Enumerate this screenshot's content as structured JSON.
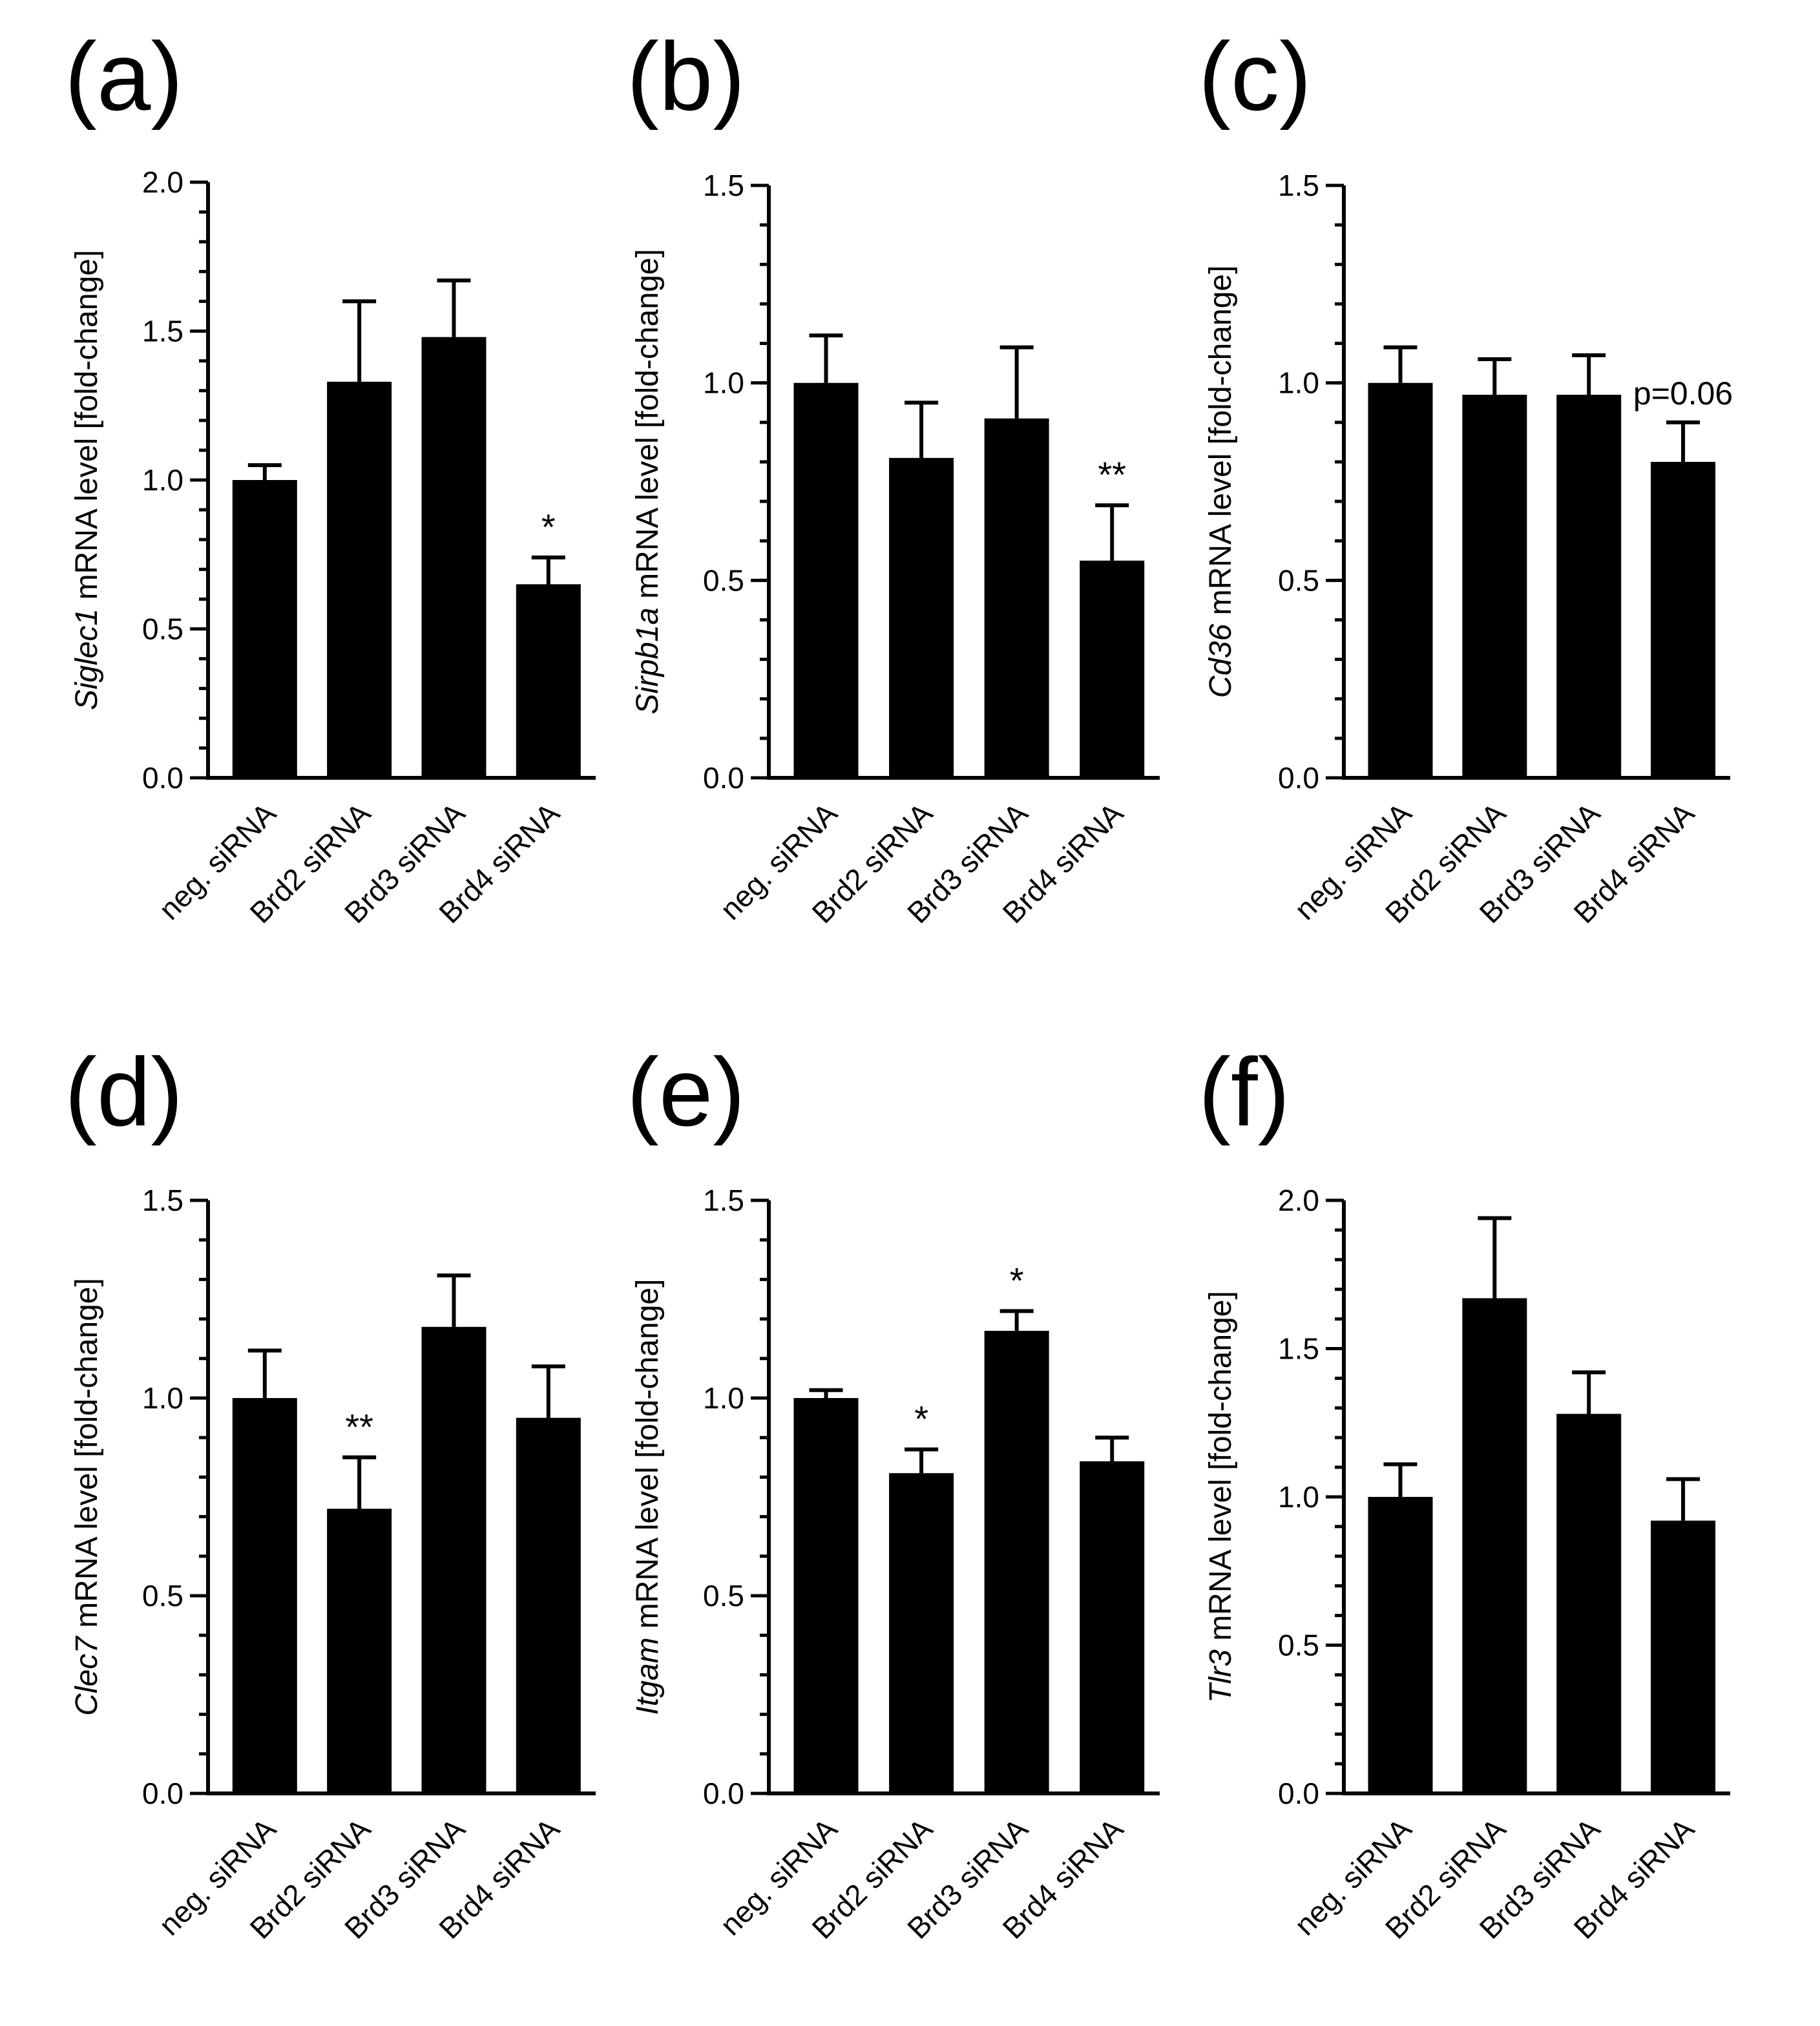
{
  "chart_data": [
    {
      "panel": "(a)",
      "type": "bar",
      "ylabel_gene": "Siglec1",
      "ylabel_rest": " mRNA level [fold-change]",
      "categories": [
        "neg. siRNA",
        "Brd2 siRNA",
        "Brd3 siRNA",
        "Brd4 siRNA"
      ],
      "values": [
        1.0,
        1.33,
        1.48,
        0.65
      ],
      "errors": [
        0.05,
        0.27,
        0.19,
        0.09
      ],
      "annotations": [
        "",
        "",
        "",
        "*"
      ],
      "ylim": [
        0,
        2.0
      ],
      "ticks": [
        0.0,
        0.5,
        1.0,
        1.5,
        2.0
      ],
      "minor_step": 0.1
    },
    {
      "panel": "(b)",
      "type": "bar",
      "ylabel_gene": "Sirpb1a",
      "ylabel_rest": " mRNA level [fold-change]",
      "categories": [
        "neg. siRNA",
        "Brd2 siRNA",
        "Brd3 siRNA",
        "Brd4 siRNA"
      ],
      "values": [
        1.0,
        0.81,
        0.91,
        0.55
      ],
      "errors": [
        0.12,
        0.14,
        0.18,
        0.14
      ],
      "annotations": [
        "",
        "",
        "",
        "**"
      ],
      "ylim": [
        0,
        1.5
      ],
      "ticks": [
        0.0,
        0.5,
        1.0,
        1.5
      ],
      "minor_step": 0.1
    },
    {
      "panel": "(c)",
      "type": "bar",
      "ylabel_gene": "Cd36",
      "ylabel_rest": " mRNA level [fold-change]",
      "categories": [
        "neg. siRNA",
        "Brd2 siRNA",
        "Brd3 siRNA",
        "Brd4 siRNA"
      ],
      "values": [
        1.0,
        0.97,
        0.97,
        0.8
      ],
      "errors": [
        0.09,
        0.09,
        0.1,
        0.1
      ],
      "annotations": [
        "",
        "",
        "",
        "p=0.06"
      ],
      "ylim": [
        0,
        1.5
      ],
      "ticks": [
        0.0,
        0.5,
        1.0,
        1.5
      ],
      "minor_step": 0.1
    },
    {
      "panel": "(d)",
      "type": "bar",
      "ylabel_gene": "Clec7",
      "ylabel_rest": " mRNA level [fold-change]",
      "categories": [
        "neg. siRNA",
        "Brd2 siRNA",
        "Brd3 siRNA",
        "Brd4 siRNA"
      ],
      "values": [
        1.0,
        0.72,
        1.18,
        0.95
      ],
      "errors": [
        0.12,
        0.13,
        0.13,
        0.13
      ],
      "annotations": [
        "",
        "**",
        "",
        ""
      ],
      "ylim": [
        0,
        1.5
      ],
      "ticks": [
        0.0,
        0.5,
        1.0,
        1.5
      ],
      "minor_step": 0.1
    },
    {
      "panel": "(e)",
      "type": "bar",
      "ylabel_gene": "Itgam",
      "ylabel_rest": " mRNA level [fold-change]",
      "categories": [
        "neg. siRNA",
        "Brd2 siRNA",
        "Brd3 siRNA",
        "Brd4 siRNA"
      ],
      "values": [
        1.0,
        0.81,
        1.17,
        0.84
      ],
      "errors": [
        0.02,
        0.06,
        0.05,
        0.06
      ],
      "annotations": [
        "",
        "*",
        "*",
        ""
      ],
      "ylim": [
        0,
        1.5
      ],
      "ticks": [
        0.0,
        0.5,
        1.0,
        1.5
      ],
      "minor_step": 0.1
    },
    {
      "panel": "(f)",
      "type": "bar",
      "ylabel_gene": "Tlr3",
      "ylabel_rest": " mRNA level [fold-change]",
      "categories": [
        "neg. siRNA",
        "Brd2 siRNA",
        "Brd3 siRNA",
        "Brd4 siRNA"
      ],
      "values": [
        1.0,
        1.67,
        1.28,
        0.92
      ],
      "errors": [
        0.11,
        0.27,
        0.14,
        0.14
      ],
      "annotations": [
        "",
        "",
        "",
        ""
      ],
      "ylim": [
        0,
        2.0
      ],
      "ticks": [
        0.0,
        0.5,
        1.0,
        1.5,
        2.0
      ],
      "minor_step": 0.1
    }
  ]
}
